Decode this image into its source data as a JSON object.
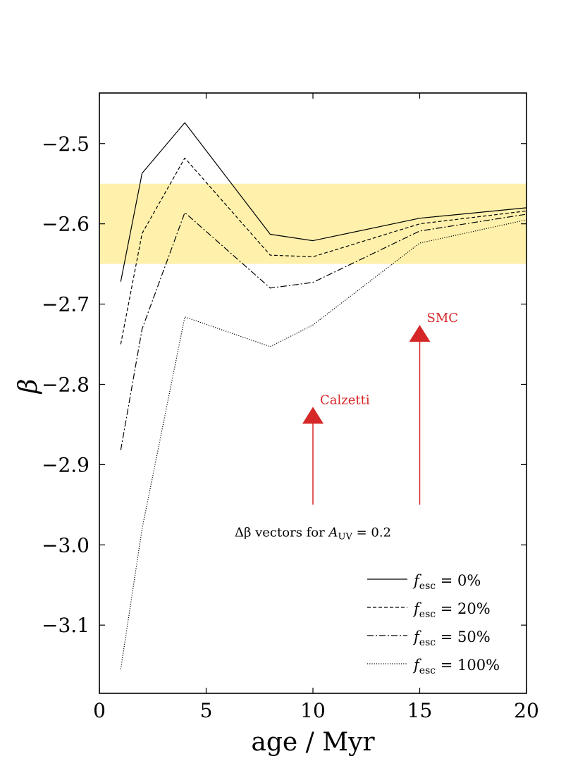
{
  "chart_data": {
    "type": "line",
    "xlabel": "age / Myr",
    "ylabel": "β",
    "xlim": [
      0,
      20
    ],
    "ylim": [
      -3.185,
      -2.437
    ],
    "xticks": [
      0,
      5,
      10,
      15,
      20
    ],
    "xtick_labels": [
      "0",
      "5",
      "10",
      "15",
      "20"
    ],
    "yticks": [
      -2.5,
      -2.6,
      -2.7,
      -2.8,
      -2.9,
      -3.0,
      -3.1
    ],
    "ytick_labels": [
      "−2.5",
      "−2.6",
      "−2.7",
      "−2.8",
      "−2.9",
      "−3.0",
      "−3.1"
    ],
    "grid": false,
    "legend_position": "bottom-right",
    "band": {
      "y_from": -2.65,
      "y_to": -2.55,
      "color": "#fff0a8"
    },
    "series": [
      {
        "name": "f_esc = 0%",
        "style": "solid",
        "x": [
          1,
          2,
          4,
          8,
          10,
          15,
          20
        ],
        "y": [
          -2.672,
          -2.537,
          -2.474,
          -2.613,
          -2.621,
          -2.593,
          -2.58
        ]
      },
      {
        "name": "f_esc = 20%",
        "style": "dashed",
        "x": [
          1,
          2,
          4,
          8,
          10,
          15,
          20
        ],
        "y": [
          -2.75,
          -2.612,
          -2.518,
          -2.639,
          -2.641,
          -2.6,
          -2.584
        ]
      },
      {
        "name": "f_esc = 50%",
        "style": "dashdot",
        "x": [
          1,
          2,
          4,
          8,
          10,
          15,
          20
        ],
        "y": [
          -2.882,
          -2.731,
          -2.586,
          -2.68,
          -2.673,
          -2.609,
          -2.588
        ]
      },
      {
        "name": "f_esc = 100%",
        "style": "dotted",
        "x": [
          1,
          2,
          4,
          8,
          10,
          15,
          20
        ],
        "y": [
          -3.155,
          -2.98,
          -2.716,
          -2.753,
          -2.726,
          -2.624,
          -2.595
        ]
      }
    ],
    "legend": [
      {
        "prefix": "f",
        "sub": "esc",
        "suffix": " = 0%",
        "style": "solid"
      },
      {
        "prefix": "f",
        "sub": "esc",
        "suffix": " = 20%",
        "style": "dashed"
      },
      {
        "prefix": "f",
        "sub": "esc",
        "suffix": " = 50%",
        "style": "dashdot"
      },
      {
        "prefix": "f",
        "sub": "esc",
        "suffix": " = 100%",
        "style": "dotted"
      }
    ],
    "annotations": {
      "arrow_color": "#d62728",
      "arrows": [
        {
          "label": "Calzetti",
          "x": 10,
          "y_from": -2.95,
          "y_to": -2.828
        },
        {
          "label": "SMC",
          "x": 15,
          "y_from": -2.95,
          "y_to": -2.726
        }
      ],
      "vector_note": {
        "pre": "Δβ vectors for ",
        "var": "A",
        "sub": "UV",
        "post": " = 0.2",
        "x": 10,
        "y": -2.965
      }
    }
  }
}
